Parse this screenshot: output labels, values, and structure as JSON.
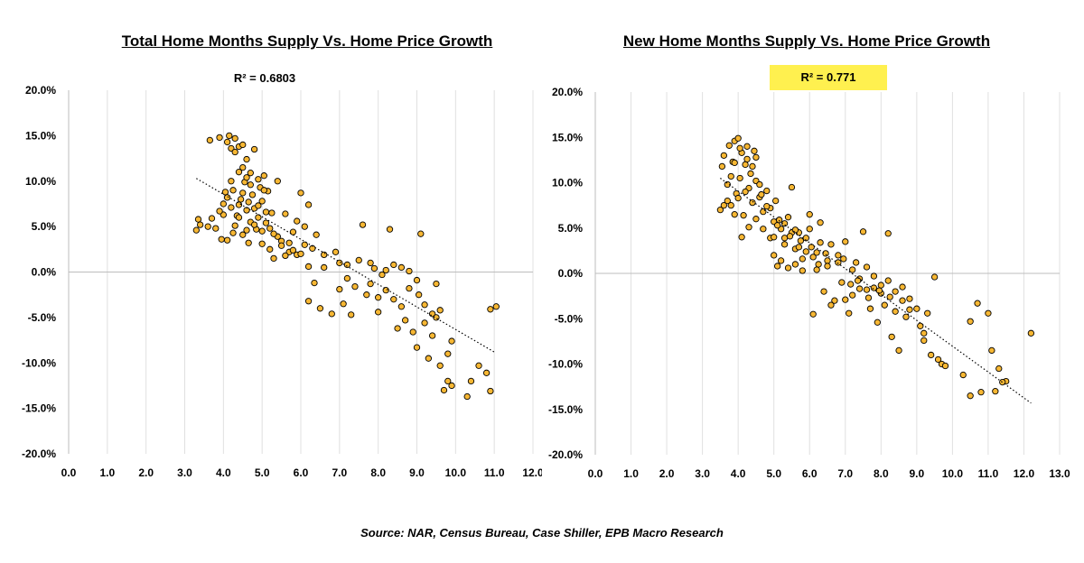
{
  "chart_data": [
    {
      "type": "scatter",
      "title": "Total Home Months Supply Vs. Home Price Growth",
      "annotation": "R² = 0.6803",
      "annotation_highlight": false,
      "xlim": [
        0,
        12
      ],
      "ylim": [
        -20,
        20
      ],
      "x_ticks": [
        "0.0",
        "1.0",
        "2.0",
        "3.0",
        "4.0",
        "5.0",
        "6.0",
        "7.0",
        "8.0",
        "9.0",
        "10.0",
        "11.0",
        "12.0"
      ],
      "y_ticks": [
        "20.0%",
        "15.0%",
        "10.0%",
        "5.0%",
        "0.0%",
        "-5.0%",
        "-10.0%",
        "-15.0%",
        "-20.0%"
      ],
      "grid": "vertical",
      "trendline": {
        "style": "dotted",
        "x": [
          3.3,
          11.0
        ],
        "y": [
          10.3,
          -8.8
        ]
      },
      "points": [
        [
          3.3,
          4.6
        ],
        [
          3.35,
          5.8
        ],
        [
          3.4,
          5.2
        ],
        [
          3.6,
          5.0
        ],
        [
          3.65,
          14.5
        ],
        [
          3.7,
          5.9
        ],
        [
          3.8,
          4.8
        ],
        [
          3.9,
          14.8
        ],
        [
          3.95,
          3.6
        ],
        [
          4.0,
          6.3
        ],
        [
          4.05,
          8.8
        ],
        [
          4.1,
          3.5
        ],
        [
          4.1,
          14.3
        ],
        [
          4.15,
          15.0
        ],
        [
          4.2,
          13.6
        ],
        [
          4.2,
          7.1
        ],
        [
          4.25,
          4.3
        ],
        [
          4.25,
          9.0
        ],
        [
          4.3,
          13.2
        ],
        [
          4.3,
          14.7
        ],
        [
          4.35,
          6.2
        ],
        [
          4.4,
          13.8
        ],
        [
          4.4,
          7.4
        ],
        [
          4.45,
          8.0
        ],
        [
          4.5,
          14.0
        ],
        [
          4.5,
          11.5
        ],
        [
          4.5,
          4.1
        ],
        [
          4.55,
          9.9
        ],
        [
          4.6,
          12.4
        ],
        [
          4.6,
          6.8
        ],
        [
          4.65,
          3.2
        ],
        [
          4.7,
          10.9
        ],
        [
          4.7,
          5.5
        ],
        [
          4.75,
          8.5
        ],
        [
          4.8,
          13.5
        ],
        [
          4.8,
          7.0
        ],
        [
          4.85,
          4.7
        ],
        [
          4.9,
          10.2
        ],
        [
          4.9,
          6.0
        ],
        [
          4.95,
          9.3
        ],
        [
          5.0,
          7.8
        ],
        [
          5.0,
          3.1
        ],
        [
          5.05,
          10.6
        ],
        [
          5.1,
          5.4
        ],
        [
          5.15,
          8.9
        ],
        [
          5.2,
          2.5
        ],
        [
          5.25,
          6.5
        ],
        [
          5.3,
          1.5
        ],
        [
          5.4,
          10.0
        ],
        [
          5.5,
          3.4
        ],
        [
          5.6,
          6.4
        ],
        [
          5.7,
          2.2
        ],
        [
          5.8,
          4.4
        ],
        [
          5.9,
          1.9
        ],
        [
          6.0,
          8.7
        ],
        [
          6.1,
          3.0
        ],
        [
          6.2,
          7.4
        ],
        [
          6.3,
          2.6
        ],
        [
          6.35,
          -1.2
        ],
        [
          6.2,
          -3.2
        ],
        [
          6.5,
          -4.0
        ],
        [
          6.6,
          1.9
        ],
        [
          6.8,
          -4.6
        ],
        [
          6.9,
          2.2
        ],
        [
          7.0,
          1.0
        ],
        [
          7.1,
          -3.5
        ],
        [
          7.2,
          0.8
        ],
        [
          7.3,
          -4.7
        ],
        [
          7.5,
          1.3
        ],
        [
          7.6,
          5.2
        ],
        [
          7.7,
          -2.5
        ],
        [
          7.8,
          -1.3
        ],
        [
          7.9,
          0.4
        ],
        [
          8.0,
          -4.4
        ],
        [
          8.1,
          -0.3
        ],
        [
          8.2,
          -2.0
        ],
        [
          8.3,
          4.7
        ],
        [
          8.4,
          -3.0
        ],
        [
          8.5,
          -6.2
        ],
        [
          8.6,
          0.5
        ],
        [
          8.7,
          -5.3
        ],
        [
          8.8,
          -1.8
        ],
        [
          8.9,
          -6.6
        ],
        [
          9.0,
          -8.3
        ],
        [
          9.05,
          -2.5
        ],
        [
          9.1,
          4.2
        ],
        [
          9.2,
          -3.6
        ],
        [
          9.3,
          -9.5
        ],
        [
          9.4,
          -4.6
        ],
        [
          9.5,
          -1.3
        ],
        [
          9.6,
          -10.3
        ],
        [
          9.7,
          -13.0
        ],
        [
          9.8,
          -12.0
        ],
        [
          9.9,
          -12.5
        ],
        [
          10.3,
          -13.7
        ],
        [
          10.4,
          -12.0
        ],
        [
          10.6,
          -10.3
        ],
        [
          10.8,
          -11.1
        ],
        [
          10.9,
          -13.1
        ],
        [
          10.9,
          -4.1
        ],
        [
          11.05,
          -3.8
        ],
        [
          3.9,
          6.7
        ],
        [
          4.0,
          7.5
        ],
        [
          4.1,
          8.2
        ],
        [
          4.3,
          5.1
        ],
        [
          4.4,
          6.0
        ],
        [
          4.6,
          4.6
        ],
        [
          4.8,
          5.2
        ],
        [
          5.0,
          4.5
        ],
        [
          5.2,
          4.8
        ],
        [
          5.4,
          3.9
        ],
        [
          5.5,
          2.9
        ],
        [
          5.6,
          1.8
        ],
        [
          5.8,
          2.4
        ],
        [
          6.0,
          2.0
        ],
        [
          6.1,
          5.0
        ],
        [
          6.4,
          4.1
        ],
        [
          7.2,
          -0.7
        ],
        [
          7.4,
          -1.6
        ],
        [
          7.8,
          1.0
        ],
        [
          8.0,
          -2.8
        ],
        [
          8.4,
          0.8
        ],
        [
          8.6,
          -3.8
        ],
        [
          8.8,
          0.1
        ],
        [
          9.0,
          -0.9
        ],
        [
          9.2,
          -5.6
        ],
        [
          9.4,
          -7.0
        ],
        [
          9.6,
          -4.2
        ],
        [
          9.8,
          -9.0
        ],
        [
          9.9,
          -7.6
        ],
        [
          4.5,
          8.7
        ],
        [
          4.7,
          9.6
        ],
        [
          4.9,
          7.3
        ],
        [
          5.1,
          6.6
        ],
        [
          5.3,
          4.2
        ],
        [
          5.7,
          3.2
        ],
        [
          5.9,
          5.6
        ],
        [
          6.6,
          0.5
        ],
        [
          7.0,
          -1.9
        ],
        [
          8.2,
          0.2
        ],
        [
          9.5,
          -5.0
        ],
        [
          4.2,
          10.0
        ],
        [
          4.4,
          11.0
        ],
        [
          4.6,
          10.4
        ],
        [
          4.65,
          7.7
        ],
        [
          5.05,
          9.0
        ],
        [
          6.2,
          0.6
        ]
      ]
    },
    {
      "type": "scatter",
      "title": "New Home Months Supply Vs. Home Price Growth",
      "annotation": "R² = 0.771",
      "annotation_highlight": true,
      "xlim": [
        0,
        13
      ],
      "ylim": [
        -20,
        20
      ],
      "x_ticks": [
        "0.0",
        "1.0",
        "2.0",
        "3.0",
        "4.0",
        "5.0",
        "6.0",
        "7.0",
        "8.0",
        "9.0",
        "10.0",
        "11.0",
        "12.0",
        "13.0"
      ],
      "y_ticks": [
        "20.0%",
        "15.0%",
        "10.0%",
        "5.0%",
        "0.0%",
        "-5.0%",
        "-10.0%",
        "-15.0%",
        "-20.0%"
      ],
      "grid": "vertical",
      "trendline": {
        "style": "dotted",
        "x": [
          3.5,
          12.2
        ],
        "y": [
          10.5,
          -14.3
        ]
      },
      "points": [
        [
          3.5,
          7.0
        ],
        [
          3.55,
          11.8
        ],
        [
          3.6,
          13.0
        ],
        [
          3.7,
          9.8
        ],
        [
          3.75,
          14.1
        ],
        [
          3.8,
          7.5
        ],
        [
          3.85,
          12.3
        ],
        [
          3.9,
          14.6
        ],
        [
          3.95,
          8.8
        ],
        [
          4.0,
          14.9
        ],
        [
          4.05,
          10.5
        ],
        [
          4.1,
          13.3
        ],
        [
          4.15,
          6.4
        ],
        [
          4.2,
          12.0
        ],
        [
          4.25,
          14.0
        ],
        [
          4.3,
          9.4
        ],
        [
          4.35,
          11.0
        ],
        [
          4.4,
          7.8
        ],
        [
          4.45,
          13.5
        ],
        [
          4.5,
          10.2
        ],
        [
          4.6,
          8.4
        ],
        [
          4.7,
          6.8
        ],
        [
          4.8,
          9.1
        ],
        [
          4.9,
          7.2
        ],
        [
          5.0,
          5.7
        ],
        [
          5.05,
          8.0
        ],
        [
          5.1,
          0.8
        ],
        [
          5.2,
          4.9
        ],
        [
          5.3,
          3.2
        ],
        [
          5.4,
          6.2
        ],
        [
          5.5,
          9.5
        ],
        [
          5.6,
          2.7
        ],
        [
          5.7,
          4.5
        ],
        [
          5.8,
          1.6
        ],
        [
          5.9,
          3.9
        ],
        [
          6.0,
          6.5
        ],
        [
          6.1,
          -4.5
        ],
        [
          6.2,
          2.3
        ],
        [
          6.3,
          5.6
        ],
        [
          6.4,
          -2.0
        ],
        [
          6.5,
          1.4
        ],
        [
          6.6,
          3.2
        ],
        [
          6.7,
          -3.0
        ],
        [
          6.8,
          2.0
        ],
        [
          6.9,
          -1.0
        ],
        [
          7.0,
          3.5
        ],
        [
          7.1,
          -4.4
        ],
        [
          7.2,
          -2.4
        ],
        [
          7.3,
          1.2
        ],
        [
          7.4,
          -0.6
        ],
        [
          7.5,
          4.6
        ],
        [
          7.6,
          -1.8
        ],
        [
          7.7,
          -3.9
        ],
        [
          7.8,
          -0.3
        ],
        [
          7.9,
          -5.4
        ],
        [
          8.0,
          -1.3
        ],
        [
          8.1,
          -3.5
        ],
        [
          8.2,
          4.4
        ],
        [
          8.3,
          -7.0
        ],
        [
          8.4,
          -2.0
        ],
        [
          8.5,
          -8.5
        ],
        [
          8.6,
          -3.0
        ],
        [
          8.8,
          -4.0
        ],
        [
          9.2,
          -7.4
        ],
        [
          9.3,
          -4.4
        ],
        [
          9.4,
          -9.0
        ],
        [
          9.5,
          -0.4
        ],
        [
          9.7,
          -10.0
        ],
        [
          10.3,
          -11.2
        ],
        [
          10.5,
          -13.5
        ],
        [
          10.5,
          -5.3
        ],
        [
          10.7,
          -3.3
        ],
        [
          10.8,
          -13.1
        ],
        [
          11.0,
          -4.4
        ],
        [
          11.1,
          -8.5
        ],
        [
          11.2,
          -13.0
        ],
        [
          11.3,
          -10.5
        ],
        [
          11.5,
          -11.9
        ],
        [
          12.2,
          -6.6
        ],
        [
          3.6,
          7.5
        ],
        [
          3.7,
          8.0
        ],
        [
          3.8,
          10.7
        ],
        [
          3.9,
          6.5
        ],
        [
          4.0,
          8.3
        ],
        [
          4.1,
          4.0
        ],
        [
          4.2,
          9.0
        ],
        [
          4.3,
          5.1
        ],
        [
          4.4,
          11.8
        ],
        [
          4.5,
          6.0
        ],
        [
          4.6,
          9.8
        ],
        [
          4.7,
          4.9
        ],
        [
          4.8,
          7.4
        ],
        [
          4.9,
          3.9
        ],
        [
          5.0,
          2.0
        ],
        [
          5.1,
          5.3
        ],
        [
          5.2,
          1.4
        ],
        [
          5.3,
          3.9
        ],
        [
          5.4,
          0.6
        ],
        [
          5.5,
          4.5
        ],
        [
          5.6,
          1.0
        ],
        [
          5.7,
          2.9
        ],
        [
          5.8,
          0.3
        ],
        [
          5.9,
          2.4
        ],
        [
          6.0,
          4.9
        ],
        [
          6.1,
          1.8
        ],
        [
          6.2,
          0.4
        ],
        [
          6.3,
          3.4
        ],
        [
          6.5,
          0.8
        ],
        [
          6.6,
          -3.5
        ],
        [
          6.8,
          1.2
        ],
        [
          7.0,
          -2.9
        ],
        [
          7.2,
          0.4
        ],
        [
          7.4,
          -1.7
        ],
        [
          7.6,
          0.7
        ],
        [
          7.8,
          -1.6
        ],
        [
          8.0,
          -2.2
        ],
        [
          8.2,
          -0.8
        ],
        [
          8.4,
          -4.2
        ],
        [
          8.6,
          -1.5
        ],
        [
          8.8,
          -2.8
        ],
        [
          9.0,
          -3.9
        ],
        [
          9.2,
          -6.6
        ],
        [
          9.6,
          -9.5
        ],
        [
          9.8,
          -10.2
        ],
        [
          4.05,
          13.8
        ],
        [
          4.25,
          12.6
        ],
        [
          4.65,
          8.7
        ],
        [
          5.15,
          5.9
        ],
        [
          5.45,
          4.1
        ],
        [
          5.75,
          3.6
        ],
        [
          6.05,
          2.9
        ],
        [
          6.45,
          2.2
        ],
        [
          6.95,
          1.6
        ],
        [
          7.35,
          -0.8
        ],
        [
          7.65,
          -2.7
        ],
        [
          7.95,
          -1.9
        ],
        [
          8.25,
          -2.6
        ],
        [
          8.7,
          -4.8
        ],
        [
          9.1,
          -5.8
        ],
        [
          11.4,
          -12.0
        ],
        [
          5.0,
          4.0
        ],
        [
          5.3,
          5.5
        ],
        [
          5.6,
          4.8
        ],
        [
          4.5,
          12.8
        ],
        [
          3.9,
          12.2
        ],
        [
          6.25,
          1.0
        ],
        [
          7.15,
          -1.2
        ]
      ]
    }
  ],
  "footer": {
    "source": "Source: NAR, Census Bureau, Case Shiller, EPB Macro Research"
  },
  "colors": {
    "point_fill": "#f7b733",
    "point_stroke": "#000000",
    "highlight": "#fff04f",
    "grid": "#e0e0e0"
  }
}
